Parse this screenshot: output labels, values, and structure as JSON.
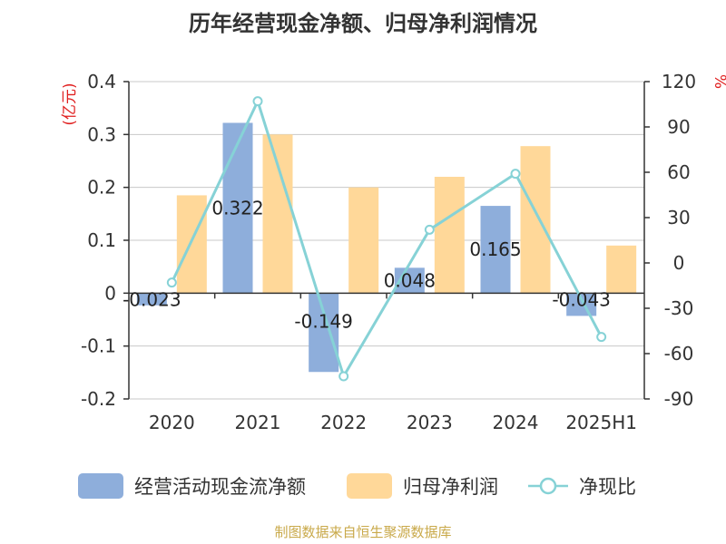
{
  "title": "历年经营现金净额、归母净利润情况",
  "source": "制图数据来自恒生聚源数据库",
  "chart_data": {
    "type": "bar",
    "categories": [
      "2020",
      "2021",
      "2022",
      "2023",
      "2024",
      "2025H1"
    ],
    "y_left": {
      "unit_label": "(亿元)",
      "ylim": [
        -0.2,
        0.4
      ],
      "ticks": [
        "-0.2",
        "-0.1",
        "0",
        "0.1",
        "0.2",
        "0.3",
        "0.4"
      ]
    },
    "y_right": {
      "unit_label": "%",
      "ylim": [
        -90,
        120
      ],
      "ticks": [
        "-90",
        "-60",
        "-30",
        "0",
        "30",
        "60",
        "90",
        "120"
      ]
    },
    "series": [
      {
        "name": "经营活动现金流净额",
        "type": "bar",
        "axis": "left",
        "color": "#8eaedb",
        "values": [
          -0.023,
          0.322,
          -0.149,
          0.048,
          0.165,
          -0.043
        ],
        "labels": [
          "-0.023",
          "0.322",
          "-0.149",
          "0.048",
          "0.165",
          "-0.043"
        ]
      },
      {
        "name": "归母净利润",
        "type": "bar",
        "axis": "left",
        "color": "#ffd899",
        "values": [
          0.185,
          0.3,
          0.2,
          0.22,
          0.278,
          0.09
        ]
      },
      {
        "name": "净现比",
        "type": "line",
        "axis": "right",
        "color": "#86d2d6",
        "values": [
          -13,
          107,
          -75,
          22,
          59,
          -49
        ]
      }
    ],
    "grid": true,
    "legend_position": "bottom"
  }
}
